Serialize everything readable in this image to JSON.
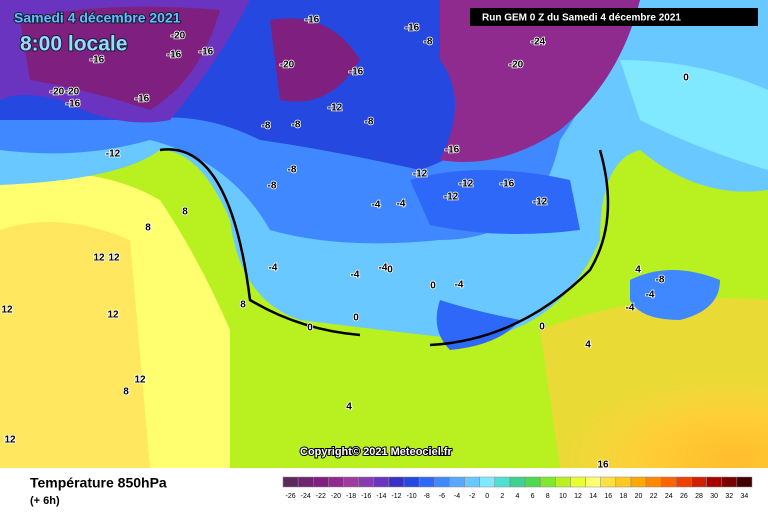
{
  "header": {
    "date": "Samedi 4 décembre 2021",
    "time": "8:00 locale",
    "run": "Run GEM 0 Z du Samedi 4 décembre 2021"
  },
  "footer": {
    "title": "Température 850hPa",
    "lead": "(+ 6h)",
    "copyright": "Copyright© 2021 Meteociel.fr"
  },
  "legend": {
    "values": [
      -26,
      -24,
      -22,
      -20,
      -18,
      -16,
      -14,
      -12,
      -10,
      -8,
      -6,
      -4,
      -2,
      0,
      2,
      4,
      6,
      8,
      10,
      12,
      14,
      16,
      18,
      20,
      22,
      24,
      26,
      28,
      30,
      32,
      34
    ],
    "colors": [
      "#5a2a5a",
      "#6e246e",
      "#7f1f7f",
      "#8f2a8f",
      "#a03aa0",
      "#8a3ab0",
      "#6a34c0",
      "#3a30c8",
      "#2448e0",
      "#2e68f8",
      "#4088ff",
      "#58a8ff",
      "#68c8ff",
      "#80e8ff",
      "#50e0d0",
      "#40d090",
      "#50d850",
      "#80e830",
      "#b8f020",
      "#e8ff30",
      "#ffff70",
      "#ffe040",
      "#ffc820",
      "#ffa800",
      "#ff8800",
      "#ff6400",
      "#f04000",
      "#d02000",
      "#a80000",
      "#780000",
      "#400000"
    ]
  },
  "map": {
    "labels": [
      "-20",
      "-16",
      "-16",
      "-20",
      "-20",
      "-16",
      "-16",
      "-20",
      "-16",
      "-8",
      "-16",
      "-16",
      "-24",
      "-20",
      "-16",
      "-12",
      "-12",
      "-8",
      "-8",
      "-8",
      "-12",
      "-16",
      "-12",
      "-12",
      "-16",
      "-12",
      "-8",
      "-8",
      "-4",
      "-4",
      "-4",
      "-4",
      "-4",
      "-4",
      "0",
      "0",
      "0",
      "0",
      "0",
      "4",
      "4",
      "4",
      "8",
      "8",
      "8",
      "8",
      "12",
      "12",
      "12",
      "12",
      "12",
      "12",
      "16",
      "0",
      "-4",
      "-4",
      "-8"
    ]
  }
}
